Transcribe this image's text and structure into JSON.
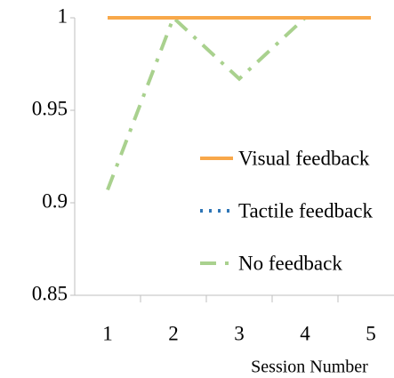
{
  "chart_data": {
    "type": "line",
    "x_label": "Session Number",
    "categories": [
      "1",
      "2",
      "3",
      "4",
      "5"
    ],
    "series": [
      {
        "name": "Visual feedback",
        "color": "#f8a84a",
        "dash": "solid",
        "values": [
          1,
          1,
          1,
          1,
          1
        ]
      },
      {
        "name": "Tactile feedback",
        "color": "#2e75b6",
        "dash": "dotted",
        "values": [
          1,
          1,
          1,
          1,
          1
        ]
      },
      {
        "name": "No feedback",
        "color": "#a9d18e",
        "dash": "dashdot",
        "values": [
          0.907,
          1,
          0.967,
          1,
          1
        ]
      }
    ],
    "ylim": [
      0.85,
      1
    ],
    "yticks": [
      0.85,
      0.9,
      0.95,
      1
    ],
    "grid": false
  }
}
